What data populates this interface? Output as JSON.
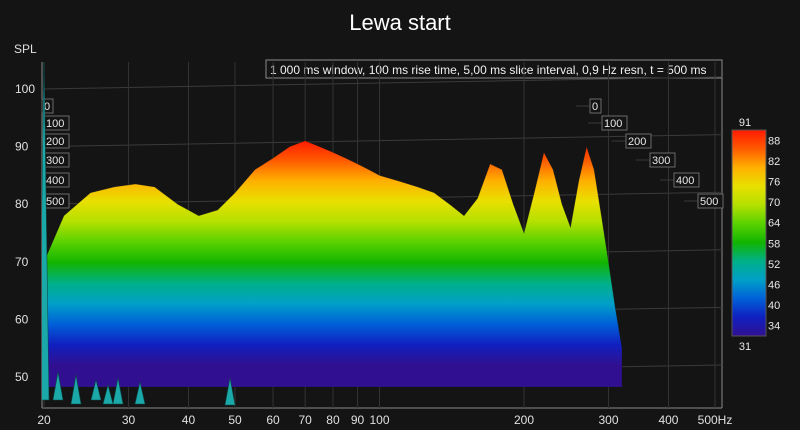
{
  "chart_data": {
    "type": "waterfall-3d",
    "title": "Lewa start",
    "info_text": "1 000 ms window, 100 ms rise time, 5,00 ms slice interval, 0,9 Hz resn, t = 500 ms",
    "ylabel": "SPL",
    "y_ticks": [
      "100",
      "90",
      "80",
      "70",
      "60",
      "50"
    ],
    "ylim": [
      45,
      102
    ],
    "x_scale": "log",
    "xlim": [
      20,
      500
    ],
    "x_ticks": [
      "20",
      "30",
      "40",
      "50",
      "60",
      "70",
      "80",
      "90",
      "100",
      "200",
      "300",
      "400",
      "500Hz"
    ],
    "x_tick_values": [
      20,
      30,
      40,
      50,
      60,
      70,
      80,
      90,
      100,
      200,
      300,
      400,
      500
    ],
    "time_ticks_left": [
      "0",
      "100",
      "200",
      "300",
      "400",
      "500"
    ],
    "time_ticks_right": [
      "0",
      "100",
      "200",
      "300",
      "400",
      "500"
    ],
    "time_unit": "ms",
    "colorbar": {
      "labels": [
        "91",
        "88",
        "82",
        "76",
        "70",
        "64",
        "58",
        "52",
        "46",
        "40",
        "34",
        "31"
      ],
      "min": 31,
      "max": 91,
      "colors": [
        "#ff1a00",
        "#ff5a00",
        "#ffb000",
        "#e8e000",
        "#b4e000",
        "#5ad200",
        "#12b400",
        "#00b088",
        "#00a0c8",
        "#0060d8",
        "#1020c0",
        "#301090"
      ]
    },
    "series": [
      {
        "x": [
          20,
          22,
          25,
          28,
          31,
          34,
          38,
          42,
          46,
          50,
          55,
          60,
          65,
          70,
          75,
          80,
          85,
          90,
          95,
          100,
          110,
          120,
          130,
          140,
          150,
          160,
          170,
          180,
          190,
          200,
          210,
          220,
          230,
          240,
          250,
          260,
          270,
          280,
          290,
          300,
          310,
          320
        ],
        "y": [
          70,
          78,
          82,
          83,
          83.5,
          83,
          80,
          78,
          79,
          82,
          86,
          88,
          90,
          91,
          90,
          89,
          88,
          87,
          86,
          85,
          84,
          83,
          82,
          80,
          78,
          81,
          87,
          86,
          80,
          75,
          82,
          89,
          86,
          80,
          76,
          84,
          90,
          86,
          78,
          70,
          62,
          55
        ]
      }
    ]
  }
}
